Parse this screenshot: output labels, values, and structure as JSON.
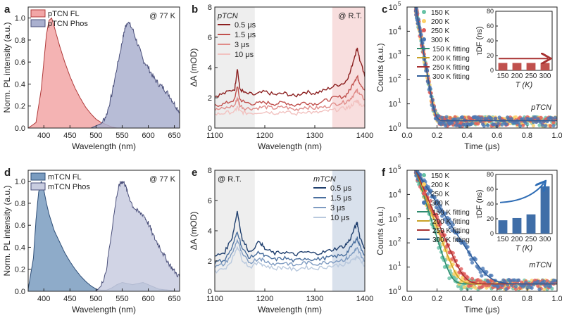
{
  "chart_data": [
    {
      "panel": "a",
      "type": "area",
      "xlabel": "Wavelength (nm)",
      "ylabel": "Norm. PL intensity (a.u.)",
      "xlim": [
        370,
        660
      ],
      "ylim": [
        0,
        1.1
      ],
      "xticks": [
        400,
        450,
        500,
        550,
        600,
        650
      ],
      "yticks": [
        0.0,
        0.2,
        0.4,
        0.6,
        0.8,
        1.0
      ],
      "annotation": "@ 77 K",
      "legend_position": "top-left",
      "series": [
        {
          "name": "pTCN FL",
          "color": "#f2a6a6",
          "stroke": "#b03a3a",
          "x": [
            370,
            385,
            395,
            400,
            405,
            410,
            415,
            420,
            430,
            440,
            450,
            460,
            470,
            480,
            490,
            500,
            510,
            520,
            530,
            540
          ],
          "y": [
            0,
            0.05,
            0.35,
            0.6,
            0.85,
            0.98,
            1.0,
            0.92,
            0.75,
            0.6,
            0.47,
            0.36,
            0.27,
            0.19,
            0.13,
            0.08,
            0.05,
            0.03,
            0.01,
            0
          ]
        },
        {
          "name": "pTCN Phos",
          "color": "#aab0cf",
          "stroke": "#4a4f7a",
          "x": [
            490,
            510,
            520,
            530,
            540,
            550,
            555,
            560,
            570,
            580,
            590,
            600,
            610,
            620,
            630,
            640,
            650,
            660
          ],
          "y": [
            0,
            0.04,
            0.12,
            0.3,
            0.55,
            0.78,
            0.9,
            0.97,
            0.9,
            0.76,
            0.62,
            0.55,
            0.46,
            0.4,
            0.36,
            0.3,
            0.22,
            0.15
          ]
        }
      ]
    },
    {
      "panel": "b",
      "type": "line",
      "xlabel": "Wavelength (nm)",
      "ylabel": "ΔA (mOD)",
      "xlim": [
        1100,
        1400
      ],
      "ylim": [
        0,
        8
      ],
      "xticks": [
        1100,
        1200,
        1300,
        1400
      ],
      "yticks": [
        0,
        2,
        4,
        6,
        8
      ],
      "label": "pTCN",
      "annotation": "@ R.T.",
      "shaded_regions": [
        {
          "from": 1100,
          "to": 1180,
          "color": "#eeeeee"
        },
        {
          "from": 1335,
          "to": 1400,
          "color": "#f8dede"
        }
      ],
      "series": [
        {
          "name": "0.5 μs",
          "color": "#8b1f1f",
          "x": [
            1100,
            1120,
            1140,
            1145,
            1150,
            1160,
            1180,
            1200,
            1220,
            1240,
            1260,
            1280,
            1300,
            1320,
            1340,
            1360,
            1370,
            1380,
            1385,
            1390,
            1400
          ],
          "y": [
            2.1,
            2.3,
            2.6,
            4.0,
            2.6,
            2.3,
            2.2,
            2.4,
            2.2,
            2.3,
            2.1,
            2.4,
            2.3,
            2.5,
            2.8,
            3.0,
            3.6,
            4.8,
            5.3,
            4.5,
            3.4
          ]
        },
        {
          "name": "1.5 μs",
          "color": "#c0504d",
          "x": [
            1100,
            1120,
            1140,
            1145,
            1150,
            1160,
            1180,
            1200,
            1220,
            1240,
            1260,
            1280,
            1300,
            1320,
            1340,
            1360,
            1370,
            1380,
            1385,
            1390,
            1400
          ],
          "y": [
            1.5,
            1.6,
            1.9,
            2.8,
            1.9,
            1.7,
            1.6,
            1.7,
            1.6,
            1.7,
            1.5,
            1.7,
            1.6,
            1.8,
            2.0,
            2.1,
            2.5,
            3.2,
            3.4,
            3.0,
            2.5
          ]
        },
        {
          "name": "3 μs",
          "color": "#e08b88",
          "x": [
            1100,
            1120,
            1140,
            1145,
            1150,
            1160,
            1180,
            1200,
            1220,
            1240,
            1260,
            1280,
            1300,
            1320,
            1340,
            1360,
            1370,
            1380,
            1385,
            1390,
            1400
          ],
          "y": [
            1.2,
            1.3,
            1.5,
            2.0,
            1.5,
            1.3,
            1.3,
            1.4,
            1.3,
            1.4,
            1.2,
            1.4,
            1.3,
            1.4,
            1.6,
            1.7,
            1.9,
            2.3,
            2.5,
            2.2,
            1.9
          ]
        },
        {
          "name": "10 μs",
          "color": "#f2c2c0",
          "x": [
            1100,
            1120,
            1140,
            1145,
            1150,
            1160,
            1180,
            1200,
            1220,
            1240,
            1260,
            1280,
            1300,
            1320,
            1340,
            1360,
            1370,
            1380,
            1385,
            1390,
            1400
          ],
          "y": [
            0.9,
            1.0,
            1.1,
            1.4,
            1.1,
            1.0,
            1.0,
            1.1,
            1.0,
            1.1,
            0.9,
            1.1,
            1.0,
            1.1,
            1.2,
            1.3,
            1.4,
            1.7,
            1.8,
            1.6,
            1.4
          ]
        }
      ]
    },
    {
      "panel": "c",
      "type": "scatter",
      "xlabel": "Time (μs)",
      "ylabel": "Counts (a.u.)",
      "yscale": "log",
      "xlim": [
        0,
        1.0
      ],
      "ylim": [
        1,
        100000
      ],
      "xticks": [
        0.0,
        0.2,
        0.4,
        0.6,
        0.8,
        1.0
      ],
      "yticks": [
        1,
        10,
        100,
        1000,
        10000,
        100000
      ],
      "label": "pTCN",
      "series": [
        {
          "name": "150 K",
          "color": "#66c2a5",
          "tau": 0.012
        },
        {
          "name": "200 K",
          "color": "#fdd166",
          "tau": 0.012
        },
        {
          "name": "250 K",
          "color": "#e05a5a",
          "tau": 0.012
        },
        {
          "name": "300 K",
          "color": "#4a78b5",
          "tau": 0.012
        }
      ],
      "fits": [
        {
          "name": "150 K fitting",
          "color": "#2e8b6e"
        },
        {
          "name": "200 K fitting",
          "color": "#c9a227"
        },
        {
          "name": "250 K fitting",
          "color": "#a83232"
        },
        {
          "name": "300 K fitting",
          "color": "#2f5d9a"
        }
      ],
      "inset": {
        "type": "bar",
        "xlabel": "T (K)",
        "ylabel": "τDF (ns)",
        "categories": [
          "150",
          "200",
          "250",
          "300"
        ],
        "values": [
          10,
          10,
          10,
          10
        ],
        "ylim": [
          0,
          80
        ],
        "yticks": [
          0,
          20,
          40,
          60,
          80
        ],
        "bar_color": "#c0504d",
        "arrow": "flat"
      }
    },
    {
      "panel": "d",
      "type": "area",
      "xlabel": "Wavelength (nm)",
      "ylabel": "Norm. PL intensity (a.u.)",
      "xlim": [
        370,
        660
      ],
      "ylim": [
        0,
        1.1
      ],
      "xticks": [
        400,
        450,
        500,
        550,
        600,
        650
      ],
      "yticks": [
        0.0,
        0.2,
        0.4,
        0.6,
        0.8,
        1.0
      ],
      "annotation": "@ 77 K",
      "legend_position": "top-left",
      "series": [
        {
          "name": "mTCN FL",
          "color": "#7a9cc0",
          "stroke": "#2f4f78",
          "x": [
            370,
            380,
            385,
            390,
            395,
            400,
            405,
            410,
            420,
            430,
            440,
            450,
            460,
            470,
            480,
            490,
            500,
            510,
            520,
            530,
            540,
            550,
            560,
            570,
            580,
            590,
            600,
            610,
            620,
            640,
            660
          ],
          "y": [
            0.02,
            0.3,
            0.65,
            0.9,
            1.0,
            0.92,
            0.8,
            0.7,
            0.55,
            0.45,
            0.35,
            0.27,
            0.2,
            0.14,
            0.09,
            0.05,
            0.02,
            0.01,
            0.01,
            0.03,
            0.06,
            0.08,
            0.07,
            0.06,
            0.07,
            0.08,
            0.06,
            0.04,
            0.02,
            0.01,
            0.0
          ]
        },
        {
          "name": "mTCN Phos",
          "color": "#c9cde0",
          "stroke": "#4a4f7a",
          "x": [
            500,
            510,
            520,
            530,
            540,
            545,
            550,
            555,
            560,
            570,
            580,
            590,
            600,
            610,
            620,
            630,
            640,
            650,
            660
          ],
          "y": [
            0,
            0.05,
            0.2,
            0.55,
            0.88,
            0.97,
            1.0,
            0.98,
            0.9,
            0.78,
            0.72,
            0.7,
            0.62,
            0.5,
            0.42,
            0.33,
            0.25,
            0.18,
            0.13
          ]
        }
      ]
    },
    {
      "panel": "e",
      "type": "line",
      "xlabel": "Wavelength (nm)",
      "ylabel": "ΔA (mOD)",
      "xlim": [
        1100,
        1400
      ],
      "ylim": [
        0,
        8
      ],
      "xticks": [
        1100,
        1200,
        1300,
        1400
      ],
      "yticks": [
        0,
        2,
        4,
        6,
        8
      ],
      "label": "mTCN",
      "annotation": "@ R.T.",
      "shaded_regions": [
        {
          "from": 1100,
          "to": 1180,
          "color": "#eeeeee"
        },
        {
          "from": 1335,
          "to": 1400,
          "color": "#d9e1ec"
        }
      ],
      "series": [
        {
          "name": "0.5 μs",
          "color": "#1f3f6e",
          "x": [
            1100,
            1120,
            1135,
            1145,
            1155,
            1170,
            1190,
            1200,
            1220,
            1240,
            1260,
            1280,
            1300,
            1320,
            1340,
            1360,
            1370,
            1380,
            1385,
            1390,
            1400
          ],
          "y": [
            2.3,
            2.6,
            3.6,
            5.3,
            3.4,
            2.6,
            3.3,
            2.8,
            2.5,
            2.6,
            2.4,
            2.6,
            2.5,
            2.6,
            2.8,
            3.0,
            3.4,
            4.2,
            4.5,
            3.6,
            2.8
          ]
        },
        {
          "name": "1.5 μs",
          "color": "#4a6f9e",
          "x": [
            1100,
            1120,
            1135,
            1145,
            1155,
            1170,
            1190,
            1200,
            1220,
            1240,
            1260,
            1280,
            1300,
            1320,
            1340,
            1360,
            1370,
            1380,
            1385,
            1390,
            1400
          ],
          "y": [
            1.9,
            2.1,
            2.9,
            4.0,
            2.8,
            2.2,
            2.6,
            2.3,
            2.1,
            2.2,
            2.0,
            2.2,
            2.1,
            2.2,
            2.3,
            2.4,
            2.8,
            3.3,
            3.5,
            3.0,
            2.4
          ]
        },
        {
          "name": "3 μs",
          "color": "#7f9cc2",
          "x": [
            1100,
            1120,
            1135,
            1145,
            1155,
            1170,
            1190,
            1200,
            1220,
            1240,
            1260,
            1280,
            1300,
            1320,
            1340,
            1360,
            1370,
            1380,
            1385,
            1390,
            1400
          ],
          "y": [
            1.6,
            1.8,
            2.5,
            3.4,
            2.4,
            1.9,
            2.2,
            2.0,
            1.8,
            1.9,
            1.7,
            1.9,
            1.8,
            1.9,
            2.0,
            2.1,
            2.3,
            2.7,
            2.8,
            2.5,
            2.0
          ]
        },
        {
          "name": "10 μs",
          "color": "#b9c9de",
          "x": [
            1100,
            1120,
            1135,
            1145,
            1155,
            1170,
            1190,
            1200,
            1220,
            1240,
            1260,
            1280,
            1300,
            1320,
            1340,
            1360,
            1370,
            1380,
            1385,
            1390,
            1400
          ],
          "y": [
            1.3,
            1.5,
            2.1,
            3.0,
            2.1,
            1.6,
            1.9,
            1.7,
            1.5,
            1.6,
            1.4,
            1.6,
            1.5,
            1.6,
            1.7,
            1.8,
            1.9,
            2.2,
            2.3,
            2.1,
            1.7
          ]
        }
      ]
    },
    {
      "panel": "f",
      "type": "scatter",
      "xlabel": "Time (μs)",
      "ylabel": "Counts (a.u.)",
      "yscale": "log",
      "xlim": [
        0,
        1.0
      ],
      "ylim": [
        1,
        100000
      ],
      "xticks": [
        0.0,
        0.2,
        0.4,
        0.6,
        0.8,
        1.0
      ],
      "yticks": [
        1,
        10,
        100,
        1000,
        10000,
        100000
      ],
      "label": "mTCN",
      "series": [
        {
          "name": "150 K",
          "color": "#66c2a5",
          "tau": 0.022
        },
        {
          "name": "200 K",
          "color": "#fdd166",
          "tau": 0.026
        },
        {
          "name": "250 K",
          "color": "#e05a5a",
          "tau": 0.03
        },
        {
          "name": "300 K",
          "color": "#4a78b5",
          "tau": 0.045
        }
      ],
      "fits": [
        {
          "name": "150 K fitting",
          "color": "#2e8b6e"
        },
        {
          "name": "200 K fitting",
          "color": "#c9a227"
        },
        {
          "name": "250 K fitting",
          "color": "#a83232"
        },
        {
          "name": "300 K fitting",
          "color": "#2f5d9a"
        }
      ],
      "inset": {
        "type": "bar",
        "xlabel": "T (K)",
        "ylabel": "τDF (ns)",
        "categories": [
          "150",
          "200",
          "250",
          "300"
        ],
        "values": [
          18,
          21,
          26,
          64
        ],
        "ylim": [
          0,
          80
        ],
        "yticks": [
          0,
          20,
          40,
          60,
          80
        ],
        "bar_color": "#3f6ea8",
        "arrow": "rising"
      }
    }
  ]
}
